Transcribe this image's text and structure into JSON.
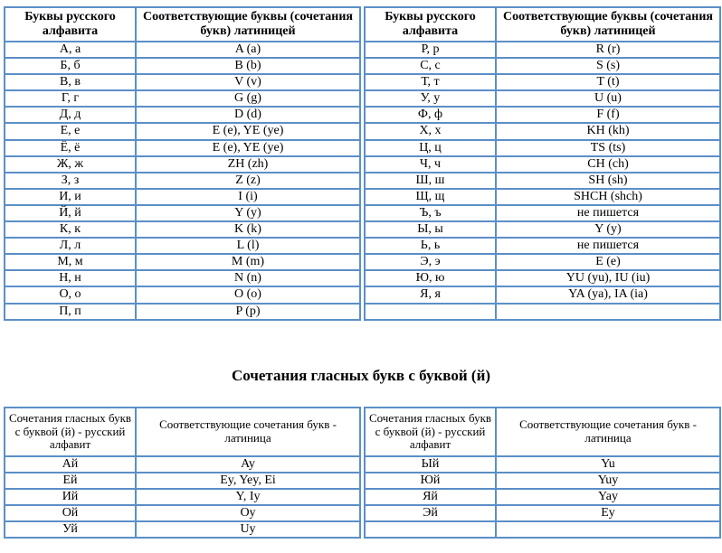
{
  "alphabet_table": {
    "headers": [
      "Буквы русского алфавита",
      "Соответствующие буквы (сочетания букв) латиницей"
    ],
    "left_rows": [
      [
        "А, а",
        "A (a)"
      ],
      [
        "Б, б",
        "B (b)"
      ],
      [
        "В, в",
        "V (v)"
      ],
      [
        "Г, г",
        "G (g)"
      ],
      [
        "Д, д",
        "D (d)"
      ],
      [
        "Е, е",
        "E (e), YE (ye)"
      ],
      [
        "Ё, ё",
        "E (e), YE (ye)"
      ],
      [
        "Ж, ж",
        "ZH (zh)"
      ],
      [
        "З, з",
        "Z (z)"
      ],
      [
        "И, и",
        "I (i)"
      ],
      [
        "Й, й",
        "Y (y)"
      ],
      [
        "К, к",
        "K (k)"
      ],
      [
        "Л, л",
        "L (l)"
      ],
      [
        "М, м",
        "M (m)"
      ],
      [
        "Н, н",
        "N (n)"
      ],
      [
        "О, о",
        "O (o)"
      ],
      [
        "П, п",
        "P (p)"
      ]
    ],
    "right_rows": [
      [
        "Р, р",
        "R (r)"
      ],
      [
        "С, с",
        "S (s)"
      ],
      [
        "Т, т",
        "T (t)"
      ],
      [
        "У, у",
        "U (u)"
      ],
      [
        "Ф, ф",
        "F (f)"
      ],
      [
        "Х, х",
        "KH (kh)"
      ],
      [
        "Ц, ц",
        "TS (ts)"
      ],
      [
        "Ч, ч",
        "CH (ch)"
      ],
      [
        "Ш, ш",
        "SH (sh)"
      ],
      [
        "Щ, щ",
        "SHCH (shch)"
      ],
      [
        "Ъ, ъ",
        "не пишется"
      ],
      [
        "Ы, ы",
        "Y (y)"
      ],
      [
        "Ь, ь",
        "не пишется"
      ],
      [
        "Э, э",
        "E (e)"
      ],
      [
        "Ю, ю",
        "YU (yu), IU (iu)"
      ],
      [
        "Я, я",
        "YA (ya), IA (ia)"
      ],
      [
        "",
        ""
      ]
    ]
  },
  "section_title": "Сочетания гласных букв с буквой (й)",
  "vowel_table": {
    "headers": [
      "Сочетания гласных букв с буквой (й) - русский алфавит",
      "Соответствующие сочетания букв - латиница"
    ],
    "left_rows": [
      [
        "Ай",
        "Ay"
      ],
      [
        "Ей",
        "Ey, Yey, Ei"
      ],
      [
        "Ий",
        "Y, Iy"
      ],
      [
        "Ой",
        "Oy"
      ],
      [
        "Уй",
        "Uy"
      ]
    ],
    "right_rows": [
      [
        "Ый",
        "Yu"
      ],
      [
        "Юй",
        "Yuy"
      ],
      [
        "Яй",
        "Yay"
      ],
      [
        "Эй",
        "Ey"
      ],
      [
        "",
        ""
      ]
    ]
  },
  "colors": {
    "border": "#5b8fc7"
  }
}
